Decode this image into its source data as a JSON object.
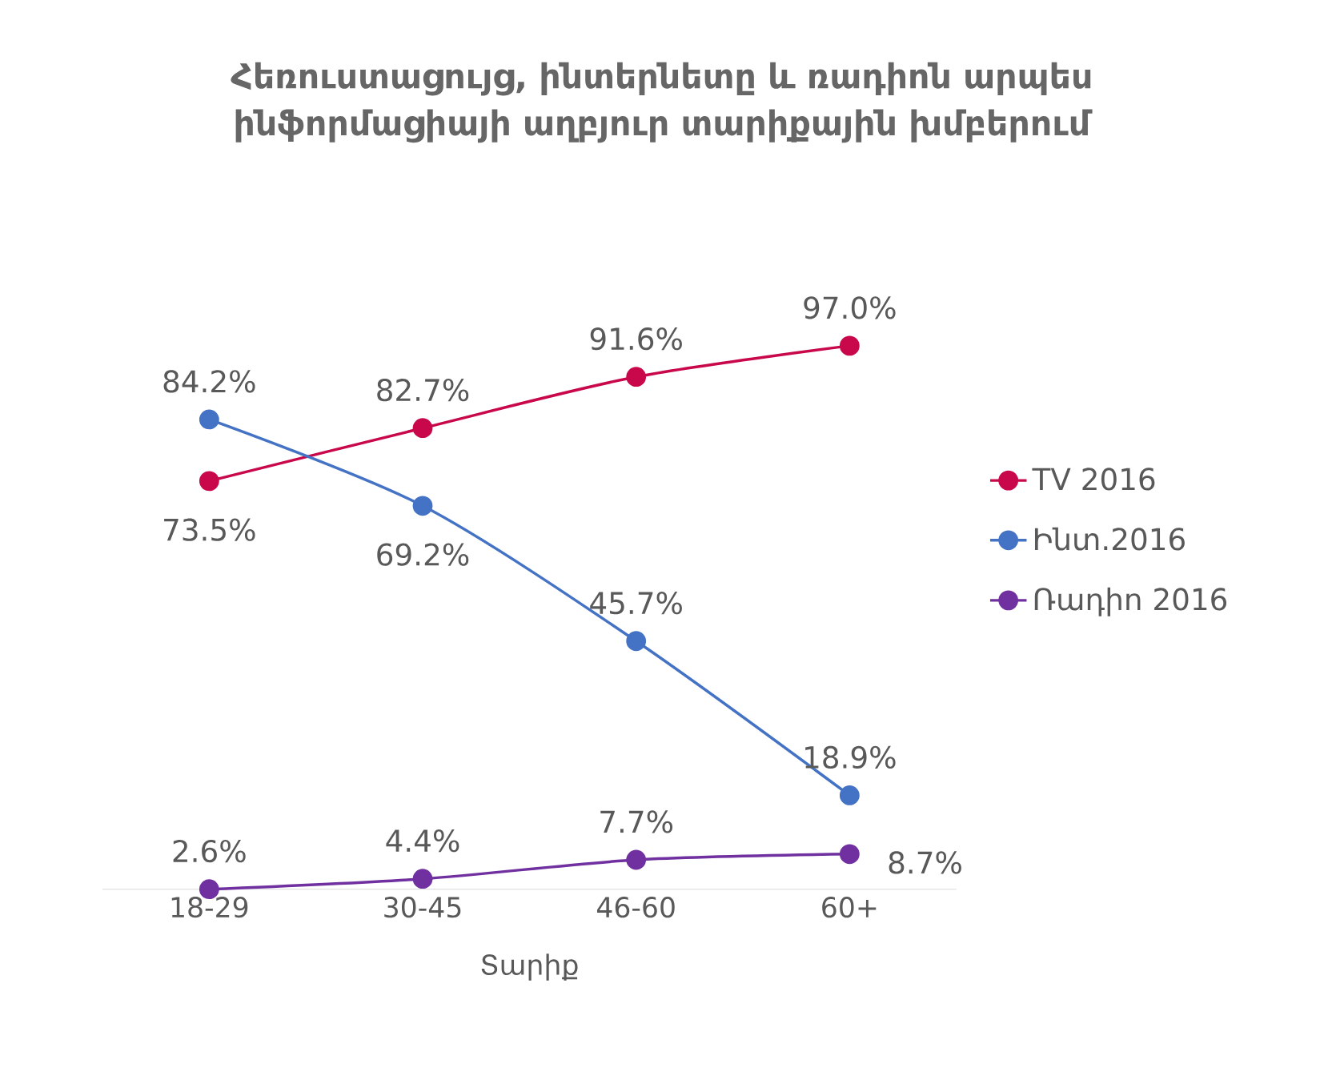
{
  "chart_data": {
    "type": "line",
    "title": "Հեռուստացույց, ինտերնետը և ռադիոն արպես ինֆորմացիայի աղբյուր տարիքային խմբերում",
    "xlabel": "Տարիք",
    "categories": [
      "18-29",
      "30-45",
      "46-60",
      "60+"
    ],
    "series": [
      {
        "name": "TV 2016",
        "color": "#c8084a",
        "values": [
          73.5,
          82.7,
          91.6,
          97.0
        ],
        "value_labels": [
          "73.5%",
          "82.7%",
          "91.6%",
          "97.0%"
        ]
      },
      {
        "name": "Ինտ.2016",
        "color": "#4472c4",
        "values": [
          84.2,
          69.2,
          45.7,
          18.9
        ],
        "value_labels": [
          "84.2%",
          "69.2%",
          "45.7%",
          "18.9%"
        ]
      },
      {
        "name": "Ռադիո 2016",
        "color": "#7030a0",
        "values": [
          2.6,
          4.4,
          7.7,
          8.7
        ],
        "value_labels": [
          "2.6%",
          "4.4%",
          "7.7%",
          "8.7%"
        ]
      }
    ],
    "marker": "circle",
    "line_style": "solid",
    "legend": "right",
    "grid": false
  }
}
